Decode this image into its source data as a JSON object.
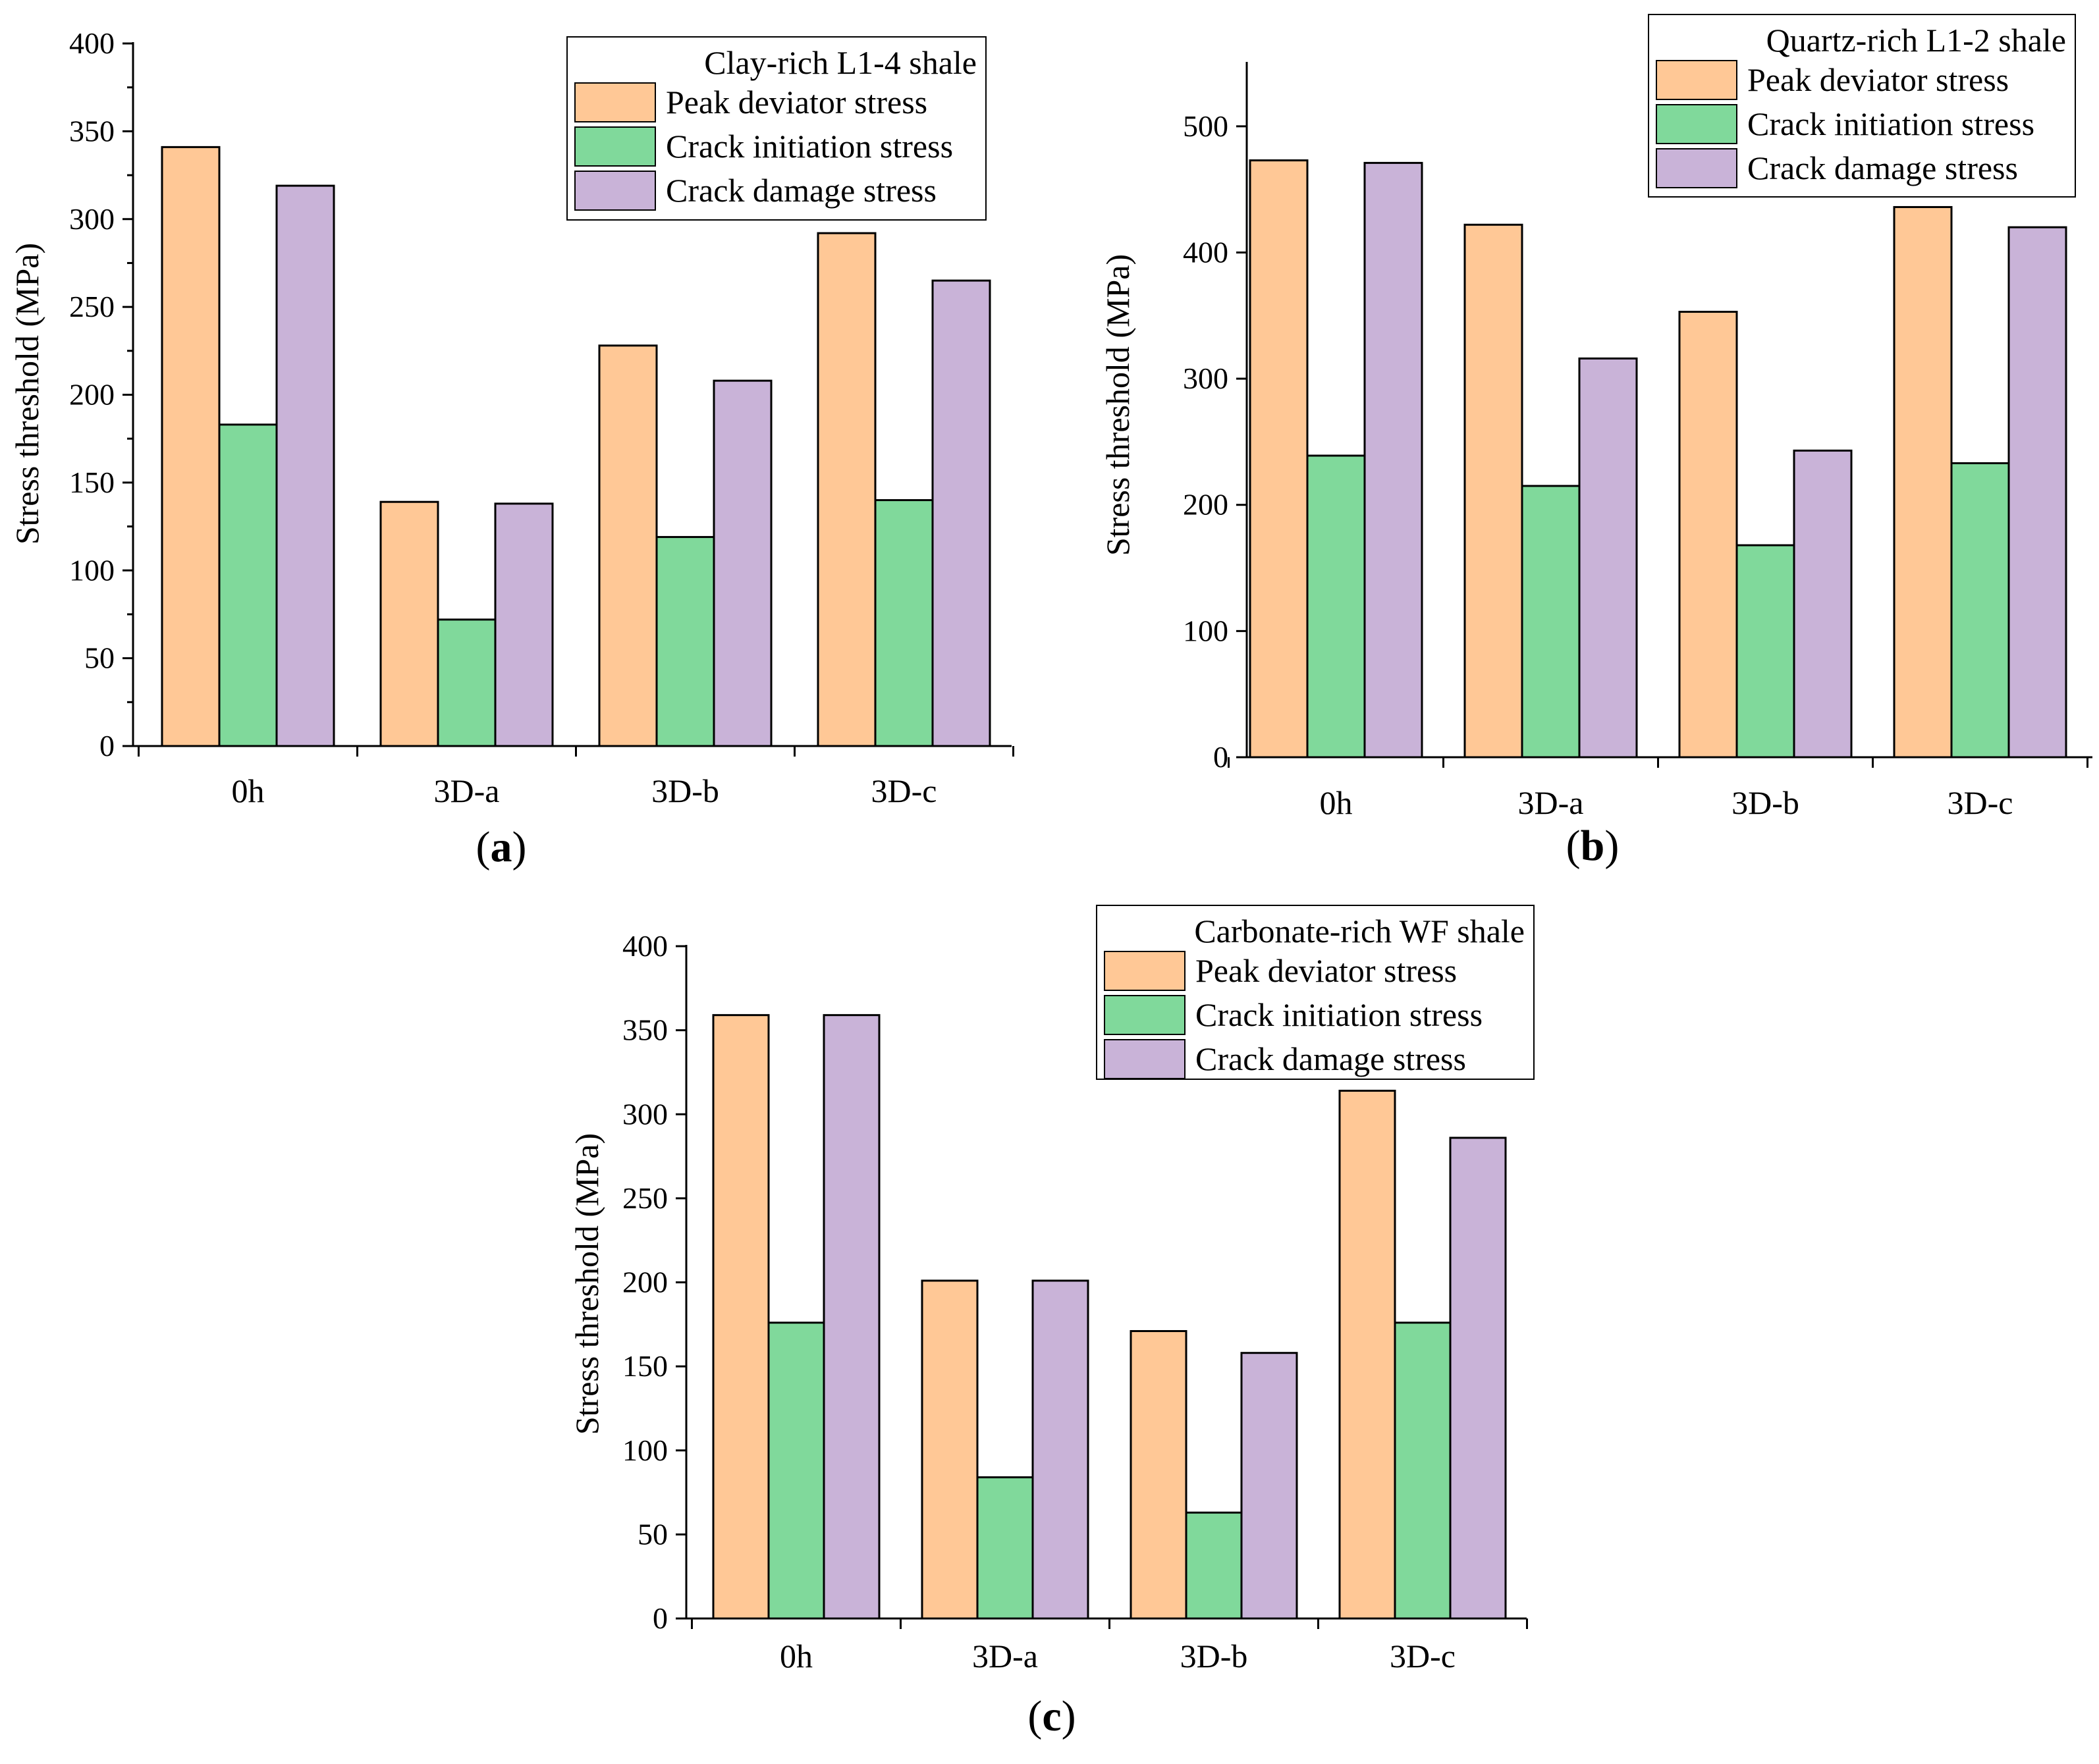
{
  "figure": {
    "colors": {
      "peak": "#FFC896",
      "initiation": "#80D99B",
      "damage": "#C9B3D8",
      "axis": "#000000"
    }
  },
  "chart_data": [
    {
      "id": "a",
      "type": "bar",
      "panel_label": {
        "open": "(",
        "letter": "a",
        "close": ")"
      },
      "legend_title": "Clay-rich L1-4 shale",
      "legend_placement": "top-right",
      "ylabel": "Stress threshold (MPa)",
      "xlabel": "",
      "ylim": [
        0,
        400
      ],
      "yticks": [
        0,
        50,
        100,
        150,
        200,
        250,
        300,
        350,
        400
      ],
      "ytick_labels": [
        "0",
        "50",
        "100",
        "150",
        "200",
        "250",
        "300",
        "350",
        "400"
      ],
      "minor_ticks": true,
      "categories": [
        "0h",
        "3D-a",
        "3D-b",
        "3D-c"
      ],
      "series": [
        {
          "name": "Peak deviator stress",
          "color_key": "peak",
          "values": [
            341,
            139,
            228,
            292
          ]
        },
        {
          "name": "Crack initiation stress",
          "color_key": "initiation",
          "values": [
            183,
            72,
            119,
            140
          ]
        },
        {
          "name": "Crack damage stress",
          "color_key": "damage",
          "values": [
            319,
            138,
            208,
            265
          ]
        }
      ]
    },
    {
      "id": "b",
      "type": "bar",
      "panel_label": {
        "open": "(",
        "letter": "b",
        "close": ")"
      },
      "legend_title": "Quartz-rich L1-2 shale",
      "legend_placement": "top-right",
      "ylabel": "Stress threshold (MPa)",
      "xlabel": "",
      "ylim": [
        0,
        550
      ],
      "yticks": [
        0,
        100,
        200,
        300,
        400,
        500
      ],
      "ytick_labels": [
        "0",
        "100",
        "200",
        "300",
        "400",
        "500"
      ],
      "minor_ticks": false,
      "categories": [
        "0h",
        "3D-a",
        "3D-b",
        "3D-c"
      ],
      "series": [
        {
          "name": "Peak deviator stress",
          "color_key": "peak",
          "values": [
            473,
            422,
            353,
            436
          ]
        },
        {
          "name": "Crack initiation stress",
          "color_key": "initiation",
          "values": [
            239,
            215,
            168,
            233
          ]
        },
        {
          "name": "Crack damage stress",
          "color_key": "damage",
          "values": [
            471,
            316,
            243,
            420
          ]
        }
      ]
    },
    {
      "id": "c",
      "type": "bar",
      "panel_label": {
        "open": "(",
        "letter": "c",
        "close": ")"
      },
      "legend_title": "Carbonate-rich WF shale",
      "legend_placement": "top-right",
      "ylabel": "Stress threshold (MPa)",
      "xlabel": "",
      "ylim": [
        0,
        400
      ],
      "yticks": [
        0,
        50,
        100,
        150,
        200,
        250,
        300,
        350,
        400
      ],
      "ytick_labels": [
        "0",
        "50",
        "100",
        "150",
        "200",
        "250",
        "300",
        "350",
        "400"
      ],
      "minor_ticks": false,
      "categories": [
        "0h",
        "3D-a",
        "3D-b",
        "3D-c"
      ],
      "series": [
        {
          "name": "Peak deviator stress",
          "color_key": "peak",
          "values": [
            359,
            201,
            171,
            314
          ]
        },
        {
          "name": "Crack initiation stress",
          "color_key": "initiation",
          "values": [
            176,
            84,
            63,
            176
          ]
        },
        {
          "name": "Crack damage stress",
          "color_key": "damage",
          "values": [
            359,
            201,
            158,
            286
          ]
        }
      ]
    }
  ]
}
